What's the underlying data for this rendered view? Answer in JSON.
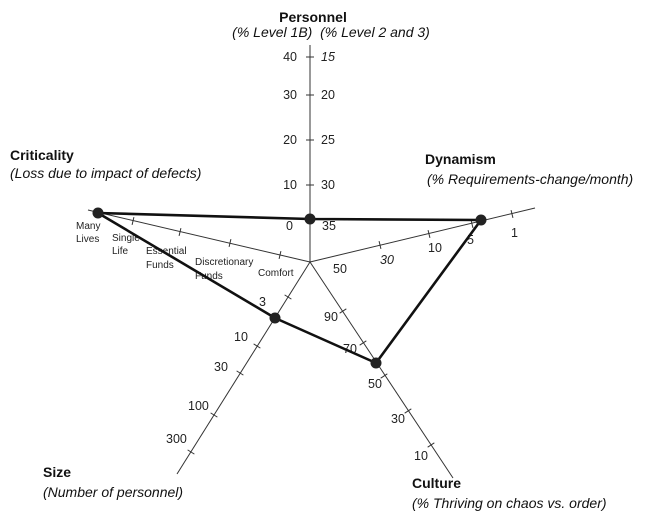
{
  "axes": {
    "personnel": {
      "title": "Personnel",
      "subtitle": "(% Level 1B)  (% Level 2 and 3)",
      "left_ticks": [
        "40",
        "30",
        "20",
        "10",
        "0"
      ],
      "right_ticks": [
        "15",
        "20",
        "25",
        "30",
        "35"
      ]
    },
    "dynamism": {
      "title": "Dynamism",
      "subtitle": "(% Requirements-change/month)",
      "ticks": [
        "50",
        "30",
        "10",
        "5",
        "1"
      ]
    },
    "culture": {
      "title": "Culture",
      "subtitle": "(% Thriving on chaos vs. order)",
      "ticks": [
        "90",
        "70",
        "50",
        "30",
        "10"
      ]
    },
    "size": {
      "title": "Size",
      "subtitle": "(Number of personnel)",
      "ticks": [
        "3",
        "10",
        "30",
        "100",
        "300"
      ]
    },
    "criticality": {
      "title": "Criticality",
      "subtitle": "(Loss due to impact of defects)",
      "ticks": [
        {
          "lines": [
            "Many",
            "Lives"
          ]
        },
        {
          "lines": [
            "Single",
            "Life"
          ]
        },
        {
          "lines": [
            "Essential",
            "Funds"
          ]
        },
        {
          "lines": [
            "Discretionary",
            "Funds"
          ]
        },
        {
          "lines": [
            "Comfort"
          ]
        }
      ]
    }
  },
  "chart_data": {
    "type": "radar",
    "series": [
      {
        "values": {
          "personnel": "0 / 35",
          "dynamism": "5",
          "culture": "50",
          "size": "3",
          "criticality": "Many Lives"
        }
      }
    ]
  }
}
